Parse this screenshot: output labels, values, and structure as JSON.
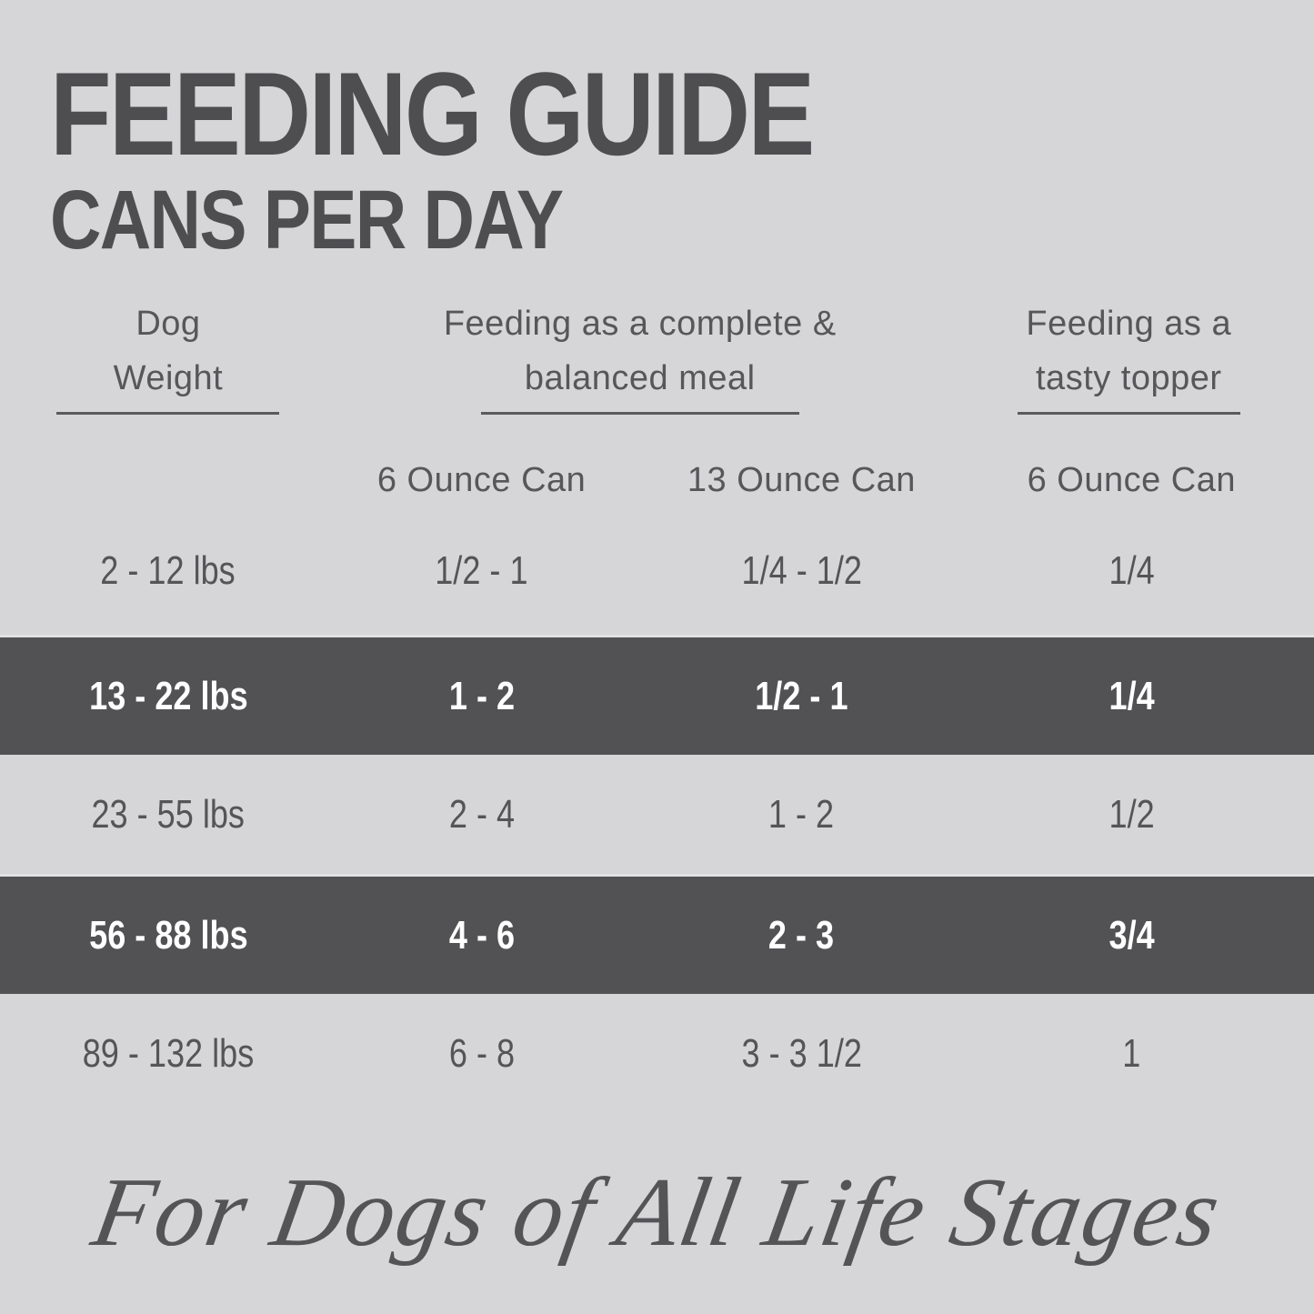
{
  "colors": {
    "background": "#d6d6d8",
    "dark_row_background": "#525254",
    "dark_text": "#4e4e51",
    "light_text": "#ffffff"
  },
  "header": {
    "title": "FEEDING GUIDE",
    "subtitle": "CANS PER DAY"
  },
  "columns": {
    "weight": {
      "line1": "Dog",
      "line2": "Weight"
    },
    "meal": {
      "line1": "Feeding as a complete &",
      "line2": "balanced meal"
    },
    "topper": {
      "line1": "Feeding as a",
      "line2": "tasty topper"
    }
  },
  "subcolumns": [
    "6 Ounce Can",
    "13 Ounce Can",
    "6 Ounce Can"
  ],
  "rows": [
    {
      "weight": "2 - 12 lbs",
      "six_oz": "1/2 - 1",
      "thirteen_oz": "1/4 - 1/2",
      "topper": "1/4"
    },
    {
      "weight": "13 - 22 lbs",
      "six_oz": "1 - 2",
      "thirteen_oz": "1/2 - 1",
      "topper": "1/4"
    },
    {
      "weight": "23 - 55 lbs",
      "six_oz": "2 - 4",
      "thirteen_oz": "1 - 2",
      "topper": "1/2"
    },
    {
      "weight": "56 - 88 lbs",
      "six_oz": "4 - 6",
      "thirteen_oz": "2 - 3",
      "topper": "3/4"
    },
    {
      "weight": "89 - 132 lbs",
      "six_oz": "6 - 8",
      "thirteen_oz": "3 - 3 1/2",
      "topper": "1"
    }
  ],
  "footer": {
    "text": "For Dogs of All Life Stages"
  },
  "chart_data": {
    "type": "table",
    "title": "FEEDING GUIDE — CANS PER DAY",
    "columns": [
      "Dog Weight",
      "Feeding as a complete & balanced meal — 6 Ounce Can",
      "Feeding as a complete & balanced meal — 13 Ounce Can",
      "Feeding as a tasty topper — 6 Ounce Can"
    ],
    "rows": [
      [
        "2 - 12 lbs",
        "1/2 - 1",
        "1/4 - 1/2",
        "1/4"
      ],
      [
        "13 - 22 lbs",
        "1 - 2",
        "1/2 - 1",
        "1/4"
      ],
      [
        "23 - 55 lbs",
        "2 - 4",
        "1 - 2",
        "1/2"
      ],
      [
        "56 - 88 lbs",
        "4 - 6",
        "2 - 3",
        "3/4"
      ],
      [
        "89 - 132 lbs",
        "6 - 8",
        "3 - 3 1/2",
        "1"
      ]
    ],
    "highlighted_rows": [
      1,
      3
    ],
    "annotation": "For Dogs of All Life Stages"
  }
}
